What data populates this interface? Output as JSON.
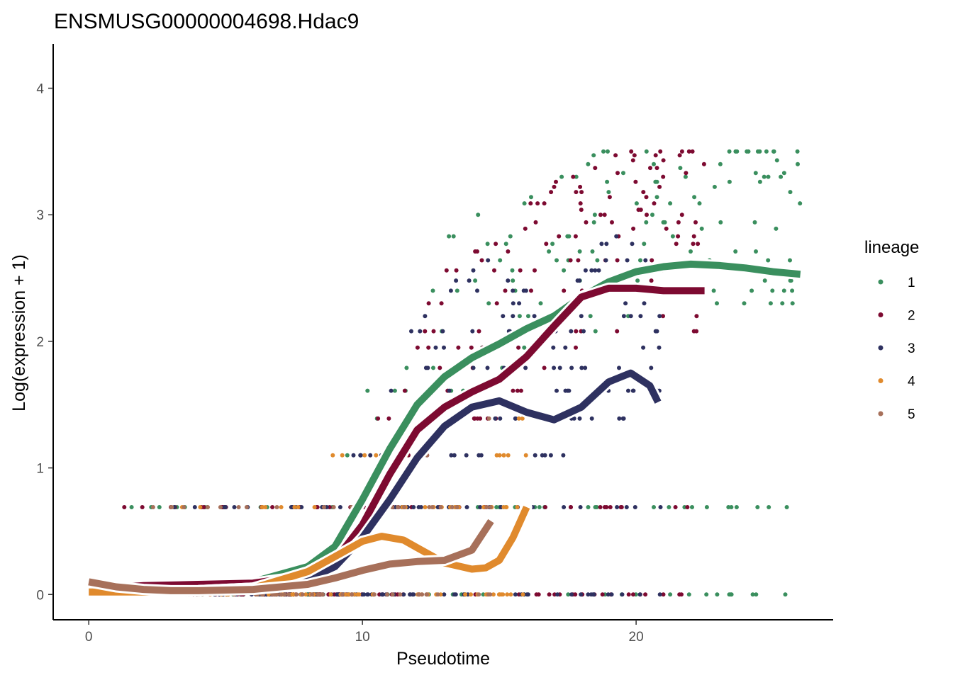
{
  "chart_data": {
    "type": "scatter",
    "title": "ENSMUSG00000004698.Hdac9",
    "xlabel": "Pseudotime",
    "ylabel": "Log(expression + 1)",
    "xlim": [
      -1.3,
      27.2
    ],
    "ylim": [
      -0.2,
      4.35
    ],
    "x_ticks": [
      0,
      10,
      20
    ],
    "y_ticks": [
      0,
      1,
      2,
      3,
      4
    ],
    "legend": {
      "title": "lineage",
      "position": "right",
      "entries": [
        "1",
        "2",
        "3",
        "4",
        "5"
      ]
    },
    "colors": {
      "1": "#3a8f5e",
      "2": "#7d0a31",
      "3": "#2e3160",
      "4": "#e08a2d",
      "5": "#a7705a"
    },
    "expression_levels": [
      0,
      0.69,
      1.1,
      1.39,
      1.61,
      1.79,
      1.95,
      2.08,
      2.2,
      2.3,
      2.4,
      2.48,
      2.56,
      2.64,
      2.71,
      2.77,
      2.83,
      2.89,
      2.94,
      3.0,
      3.04,
      3.09,
      3.14,
      3.18,
      3.22,
      3.26,
      3.3,
      3.33,
      3.37,
      3.4,
      3.43,
      3.47,
      3.5
    ],
    "lineage_pseudotime_range": {
      "1": [
        0,
        26
      ],
      "2": [
        0,
        22.5
      ],
      "3": [
        0,
        21
      ],
      "4": [
        0,
        16
      ],
      "5": [
        0,
        14.7
      ]
    },
    "smoothers": [
      {
        "name": "1",
        "x": [
          0,
          2,
          4,
          6,
          8,
          9,
          10,
          11,
          12,
          13,
          14,
          15,
          16,
          17,
          18,
          19,
          20,
          21,
          22,
          23,
          24,
          25,
          26
        ],
        "y": [
          0.02,
          0.04,
          0.06,
          0.1,
          0.22,
          0.38,
          0.75,
          1.15,
          1.5,
          1.72,
          1.87,
          1.98,
          2.1,
          2.2,
          2.35,
          2.47,
          2.55,
          2.59,
          2.61,
          2.6,
          2.58,
          2.55,
          2.53
        ]
      },
      {
        "name": "2",
        "x": [
          0,
          2,
          4,
          6,
          8,
          9,
          10,
          11,
          12,
          13,
          14,
          15,
          16,
          17,
          18,
          19,
          20,
          21,
          22,
          22.5
        ],
        "y": [
          0.04,
          0.07,
          0.08,
          0.09,
          0.15,
          0.27,
          0.55,
          0.95,
          1.3,
          1.48,
          1.6,
          1.7,
          1.88,
          2.12,
          2.35,
          2.42,
          2.42,
          2.4,
          2.4,
          2.4
        ]
      },
      {
        "name": "3",
        "x": [
          0,
          2,
          4,
          6,
          8,
          9,
          10,
          11,
          12,
          13,
          14,
          15,
          16,
          17,
          18,
          19,
          19.8,
          20.5,
          20.8
        ],
        "y": [
          0.02,
          0.02,
          0.03,
          0.05,
          0.12,
          0.22,
          0.45,
          0.75,
          1.08,
          1.33,
          1.48,
          1.53,
          1.44,
          1.38,
          1.48,
          1.68,
          1.75,
          1.65,
          1.52
        ]
      },
      {
        "name": "4",
        "x": [
          0,
          2,
          4,
          6,
          8,
          9,
          10,
          10.7,
          11.5,
          12,
          13,
          14,
          14.5,
          15,
          15.5,
          16
        ],
        "y": [
          0.02,
          0.02,
          0.03,
          0.05,
          0.18,
          0.3,
          0.42,
          0.46,
          0.43,
          0.37,
          0.25,
          0.2,
          0.21,
          0.27,
          0.45,
          0.69
        ]
      },
      {
        "name": "5",
        "x": [
          0,
          1,
          2,
          3,
          4,
          6,
          8,
          9,
          10,
          11,
          12,
          13,
          14,
          14.7
        ],
        "y": [
          0.1,
          0.06,
          0.04,
          0.03,
          0.03,
          0.04,
          0.08,
          0.13,
          0.19,
          0.24,
          0.26,
          0.27,
          0.35,
          0.58
        ]
      }
    ]
  }
}
